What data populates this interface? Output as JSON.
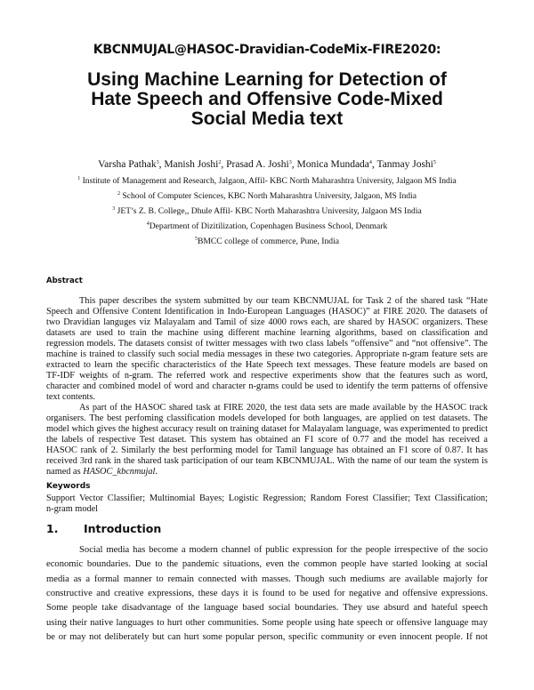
{
  "header": "KBCNMUJAL@HASOC-Dravidian-CodeMix-FIRE2020:",
  "title_lines": [
    "Using Machine Learning for Detection of",
    "Hate Speech and Offensive Code-Mixed",
    "Social Media text"
  ],
  "authors": [
    {
      "name": "Varsha Pathak",
      "sup": "3"
    },
    {
      "name": "Manish Joshi",
      "sup": "2"
    },
    {
      "name": "Prasad A. Joshi",
      "sup": "3"
    },
    {
      "name": "Monica Mundada",
      "sup": "4"
    },
    {
      "name": "Tanmay Joshi",
      "sup": "5"
    }
  ],
  "affiliations": [
    {
      "sup": "1",
      "text": " Institute of Management and Research, Jalgaon, Affil- KBC  North Maharashtra University, Jalgaon MS India"
    },
    {
      "sup": "2",
      "text": "  School of Computer Sciences, KBC  North Maharashtra University, Jalgaon, MS India"
    },
    {
      "sup": "3",
      "text": " JET’s Z. B. College,, Dhule Affil- KBC  North Maharashtra University, Jalgaon  MS India"
    },
    {
      "sup": "4",
      "text": "Department of Dizitilization, Copenhagen Business School, Denmark"
    },
    {
      "sup": "5",
      "text": "BMCC college of commerce, Pune, India"
    }
  ],
  "abstract": {
    "heading": "Abstract",
    "para1": [
      "This paper describes the system submitted by our team KBCNMUJAL for Task 2 of the shared task “Hate",
      "Speech and Offensive Content Identification in Indo-European Languages (HASOC)” at FIRE 2020. The datasets of",
      "two Dravidian languges viz Malayalam and Tamil of size 4000 rows each, are shared by HASOC organizers. These",
      "datasets  are used to train the machine using different machine learning algorithms, based on classification and",
      "regression models. The datasets consist of twitter messages with two class labels “offensive” and “not offensive”. The",
      "machine is trained to classify such social media messages in these two categories. Appropriate n-gram feature sets are",
      "extracted to learn the specific characteristics of the Hate Speech text messages. These feature models are based on",
      "TF-IDF weights of n-gram. The referred work and respective experiments show that the features such as word,",
      "character and combined model of word and character n-grams could be used to identify the term patterns of offensive",
      "text contents."
    ],
    "para2": [
      "As part of the HASOC shared task at FIRE 2020, the test data sets are made available by the HASOC track",
      "organisers. The best perfoming classification models developed for both languages, are applied on test datasets. The",
      "model which gives the highest accuracy result on training dataset for Malayalam language, was experimented to predict",
      "the labels of respective Test dataset. This system has obtained an F1 score of 0.77 and the model has received a",
      "HASOC rank of 2. Similarly the best performing model for Tamil language has obtained an F1 score of 0.87. It  has",
      "received 3rd rank in the shared task participation of our team KBCNMUJAL. With the name of our team the system is",
      "named as "
    ],
    "system_name": "HASOC_kbcnmujal",
    "system_name_suffix": "."
  },
  "keywords": {
    "heading": "Keywords",
    "lines": [
      "Support Vector Classifier; Multinomial Bayes; Logistic Regression; Random Forest Classifier; Text Classification;",
      "n-gram model"
    ]
  },
  "introduction": {
    "number": "1.",
    "heading": "Introduction",
    "lines": [
      "Social media has become a modern channel of public expression for the people irrespective of the socio",
      "economic boundaries. Due to the pandemic situations, even the common people have started looking at social",
      "media as a formal manner to remain connected with masses. Though such mediums are available majorly for",
      "constructive and creative expressions, these days it is found to be used for negative and offensive expressions.",
      "Some people take disadvantage of the language based social boundaries. They use absurd and hateful speech",
      "using their native languages to hurt other communities. Some people using hate speech or offensive language may",
      "be or may not deliberately but can hurt some popular person, specific community or even innocent people.  If not"
    ]
  }
}
